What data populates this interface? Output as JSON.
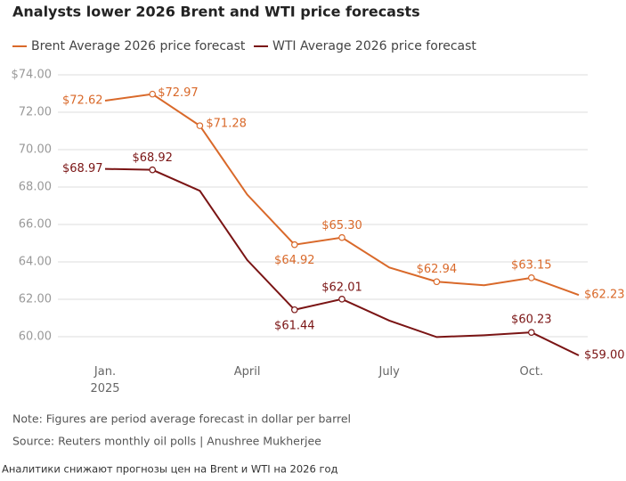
{
  "chart_data": {
    "type": "line",
    "title": "Analysts lower 2026 Brent and WTI price forecasts",
    "categories": [
      "Jan.\n2025",
      null,
      null,
      "April",
      null,
      null,
      "July",
      null,
      null,
      "Oct.",
      null
    ],
    "series": [
      {
        "name": "Brent Average 2026 price forecast",
        "color": "#d9692a",
        "values": [
          72.62,
          72.97,
          71.28,
          67.6,
          64.92,
          65.3,
          63.7,
          62.94,
          62.75,
          63.15,
          62.23
        ],
        "value_labels": [
          "$72.62",
          "$72.97",
          "$71.28",
          null,
          "$64.92",
          "$65.30",
          null,
          "$62.94",
          null,
          "$63.15",
          "$62.23"
        ]
      },
      {
        "name": "WTI Average 2026 price forecast",
        "color": "#7a1414",
        "values": [
          68.97,
          68.92,
          67.8,
          64.1,
          61.44,
          62.01,
          60.86,
          59.98,
          60.08,
          60.23,
          59.0
        ],
        "value_labels": [
          "$68.97",
          "$68.92",
          null,
          null,
          "$61.44",
          "$62.01",
          null,
          null,
          null,
          "$60.23",
          "$59.00"
        ]
      }
    ],
    "ylim": [
      58,
      74
    ],
    "yticks": [
      {
        "value": 60,
        "label": "60.00"
      },
      {
        "value": 62,
        "label": "62.00"
      },
      {
        "value": 64,
        "label": "64.00"
      },
      {
        "value": 66,
        "label": "66.00"
      },
      {
        "value": 68,
        "label": "68.00"
      },
      {
        "value": 70,
        "label": "70.00"
      },
      {
        "value": 72,
        "label": "72.00"
      },
      {
        "value": 74,
        "label": "$74.00"
      }
    ],
    "grid": true,
    "note": "Note: Figures are period average forecast in dollar per barrel",
    "source": "Source: Reuters monthly oil polls | Anushree Mukherjee",
    "caption": "Аналитики снижают прогнозы цен на Brent и WTI на 2026 год"
  }
}
